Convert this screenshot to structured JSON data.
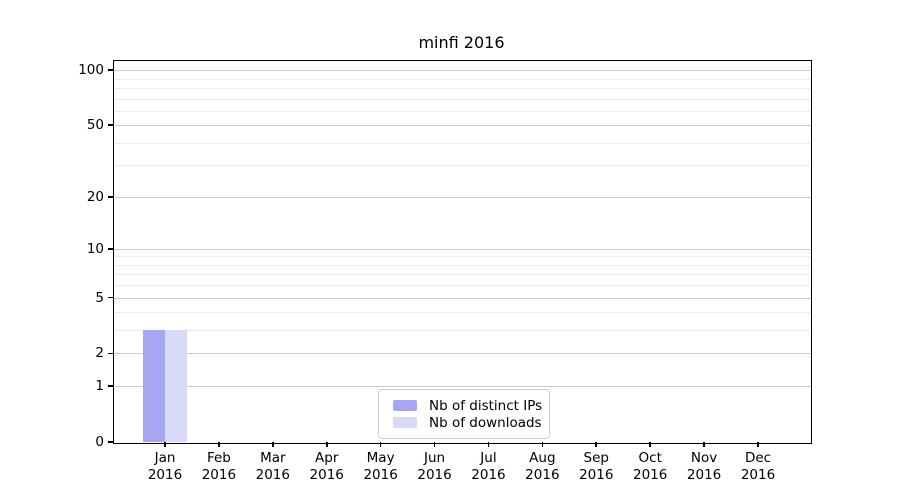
{
  "chart_data": {
    "type": "bar",
    "title": "minfi 2016",
    "xlabel": "",
    "ylabel": "",
    "yscale": "log1p",
    "grid": true,
    "ylim": [
      0,
      113.6
    ],
    "yticks": [
      0,
      1,
      2,
      5,
      10,
      20,
      50,
      100
    ],
    "minor_gridlines": [
      3,
      4,
      6,
      7,
      8,
      9,
      30,
      40,
      60,
      70,
      80,
      90
    ],
    "categories": [
      {
        "month": "Jan",
        "year": "2016"
      },
      {
        "month": "Feb",
        "year": "2016"
      },
      {
        "month": "Mar",
        "year": "2016"
      },
      {
        "month": "Apr",
        "year": "2016"
      },
      {
        "month": "May",
        "year": "2016"
      },
      {
        "month": "Jun",
        "year": "2016"
      },
      {
        "month": "Jul",
        "year": "2016"
      },
      {
        "month": "Aug",
        "year": "2016"
      },
      {
        "month": "Sep",
        "year": "2016"
      },
      {
        "month": "Oct",
        "year": "2016"
      },
      {
        "month": "Nov",
        "year": "2016"
      },
      {
        "month": "Dec",
        "year": "2016"
      }
    ],
    "series": [
      {
        "name": "Nb of distinct IPs",
        "color": "#a6a6f2",
        "values": [
          3,
          0,
          0,
          0,
          0,
          0,
          0,
          0,
          0,
          0,
          0,
          0
        ]
      },
      {
        "name": "Nb of downloads",
        "color": "#dadaf8",
        "values": [
          3,
          0,
          0,
          0,
          0,
          0,
          0,
          0,
          0,
          0,
          0,
          0
        ]
      }
    ],
    "legend_position": "lower center"
  },
  "colors": {
    "grid_major": "#cccccc",
    "grid_minor": "#ececec",
    "spine": "#000000",
    "background": "#ffffff"
  }
}
